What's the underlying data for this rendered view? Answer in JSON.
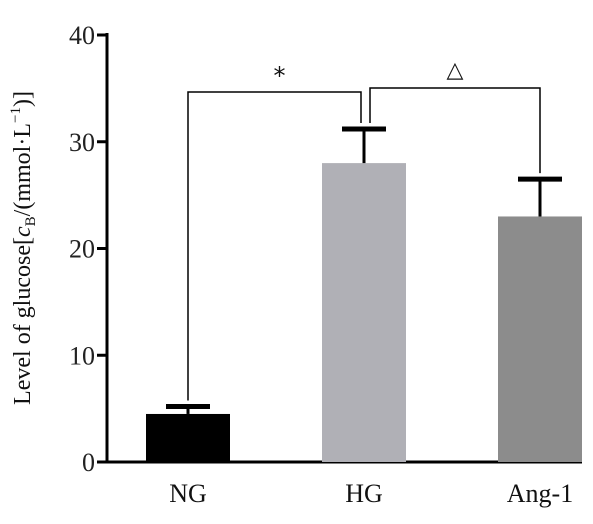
{
  "chart_data": {
    "type": "bar",
    "categories": [
      "NG",
      "HG",
      "Ang-1"
    ],
    "values": [
      4.5,
      28.0,
      23.0
    ],
    "errors": [
      0.7,
      3.2,
      3.5
    ],
    "bar_colors": [
      "#000000",
      "#b0b0b6",
      "#8c8c8c"
    ],
    "ylabel": "Level of glucose[cB/(mmol·L−1)]",
    "ylabel_parts": {
      "prefix": "Level of glucose[",
      "var": "c",
      "sub": "B",
      "mid": "/(mmol·L",
      "sup": "−1",
      "suffix": ")]"
    },
    "ylim": [
      0,
      40
    ],
    "yticks": [
      0,
      10,
      20,
      30,
      40
    ],
    "grid": false,
    "significance": [
      {
        "from": "NG",
        "to": "HG",
        "symbol": "*"
      },
      {
        "from": "HG",
        "to": "Ang-1",
        "symbol": "△"
      }
    ]
  }
}
